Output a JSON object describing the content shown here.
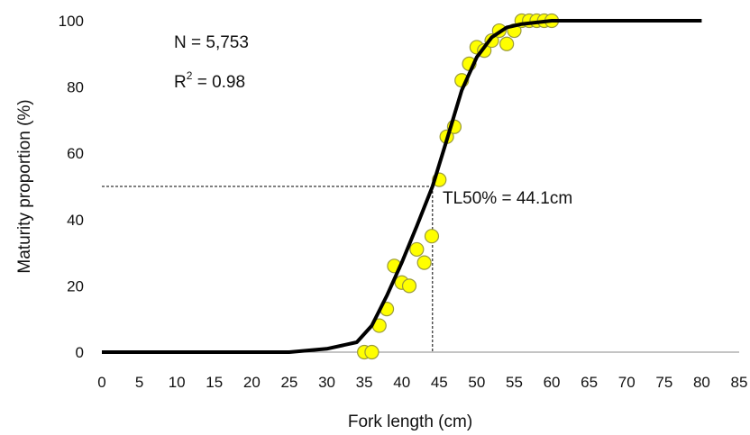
{
  "chart_data": {
    "type": "scatter",
    "xlabel": "Fork length (cm)",
    "ylabel": "Maturity proportion (%)",
    "xlim": [
      0,
      85
    ],
    "ylim": [
      0,
      100
    ],
    "xticks": [
      0,
      5,
      10,
      15,
      20,
      25,
      30,
      35,
      40,
      45,
      50,
      55,
      60,
      65,
      70,
      75,
      80,
      85
    ],
    "yticks": [
      0,
      20,
      40,
      60,
      80,
      100
    ],
    "grid": false,
    "legend": "none",
    "observed": {
      "marker_color": "#ffff00",
      "marker_edge_color": "#9a9a3a",
      "points": [
        {
          "x": 35,
          "y": 0
        },
        {
          "x": 36,
          "y": 0
        },
        {
          "x": 37,
          "y": 8
        },
        {
          "x": 38,
          "y": 13
        },
        {
          "x": 39,
          "y": 26
        },
        {
          "x": 40,
          "y": 21
        },
        {
          "x": 41,
          "y": 20
        },
        {
          "x": 42,
          "y": 31
        },
        {
          "x": 43,
          "y": 27
        },
        {
          "x": 44,
          "y": 35
        },
        {
          "x": 45,
          "y": 52
        },
        {
          "x": 46,
          "y": 65
        },
        {
          "x": 47,
          "y": 68
        },
        {
          "x": 48,
          "y": 82
        },
        {
          "x": 49,
          "y": 87
        },
        {
          "x": 50,
          "y": 92
        },
        {
          "x": 51,
          "y": 91
        },
        {
          "x": 52,
          "y": 94
        },
        {
          "x": 53,
          "y": 97
        },
        {
          "x": 54,
          "y": 93
        },
        {
          "x": 55,
          "y": 97
        },
        {
          "x": 56,
          "y": 100
        },
        {
          "x": 57,
          "y": 100
        },
        {
          "x": 58,
          "y": 100
        },
        {
          "x": 59,
          "y": 100
        },
        {
          "x": 60,
          "y": 100
        }
      ]
    },
    "fitted_curve": {
      "line_color": "#000000",
      "points": [
        {
          "x": 0,
          "y": 0
        },
        {
          "x": 25,
          "y": 0
        },
        {
          "x": 30,
          "y": 1
        },
        {
          "x": 34,
          "y": 3
        },
        {
          "x": 36,
          "y": 8
        },
        {
          "x": 38,
          "y": 17
        },
        {
          "x": 40,
          "y": 27
        },
        {
          "x": 42,
          "y": 38
        },
        {
          "x": 44.1,
          "y": 50
        },
        {
          "x": 46,
          "y": 64
        },
        {
          "x": 48,
          "y": 79
        },
        {
          "x": 50,
          "y": 89
        },
        {
          "x": 52,
          "y": 95
        },
        {
          "x": 54,
          "y": 98
        },
        {
          "x": 56,
          "y": 99
        },
        {
          "x": 60,
          "y": 100
        },
        {
          "x": 80,
          "y": 100
        }
      ]
    },
    "reference_lines": {
      "x": 44.1,
      "y": 50
    },
    "annotations": {
      "n_text": "N = 5,753",
      "r2_prefix": "R",
      "r2_sup": "2",
      "r2_rest": " = 0.98",
      "tl50_text": "TL50% = 44.1cm"
    }
  }
}
